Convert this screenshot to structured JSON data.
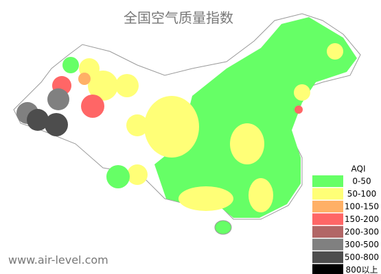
{
  "title": "全国空气质量指数",
  "legend": {
    "title": "AQI",
    "items": [
      {
        "label": "0-50",
        "color": "#66ff66"
      },
      {
        "label": "50-100",
        "color": "#ffff77"
      },
      {
        "label": "100-150",
        "color": "#ffb066"
      },
      {
        "label": "150-200",
        "color": "#ff6666"
      },
      {
        "label": "200-300",
        "color": "#b26666"
      },
      {
        "label": "300-500",
        "color": "#808080"
      },
      {
        "label": "500-800",
        "color": "#4d4d4d"
      },
      {
        "label": "800以上",
        "color": "#000000"
      }
    ]
  },
  "watermark": "www.air-level.com"
}
